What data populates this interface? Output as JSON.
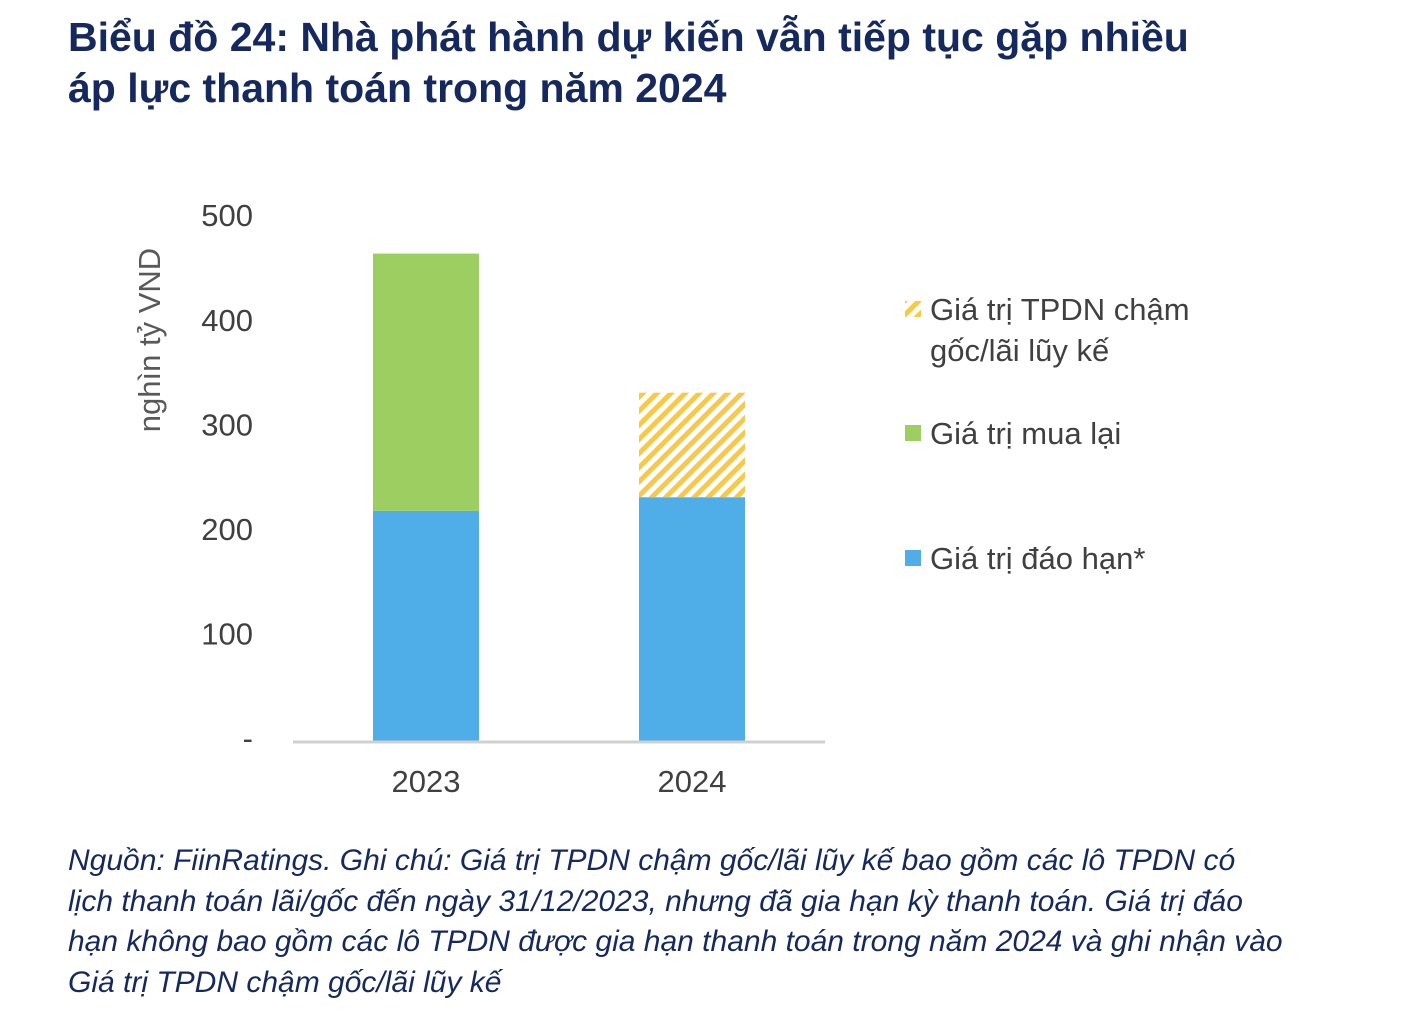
{
  "chart_data": {
    "type": "stacked_bar",
    "title": "Biểu đồ 24: Nhà phát hành dự kiến vẫn tiếp tục gặp nhiều áp lực thanh toán trong năm 2024",
    "y_label": "nghìn tỷ VND",
    "categories": [
      "2023",
      "2024"
    ],
    "series": [
      {
        "name": "Giá trị đáo hạn*",
        "color": "#4fade8",
        "values": [
          220,
          233
        ]
      },
      {
        "name": "Giá trị mua lại",
        "color": "#9dce62",
        "values": [
          246,
          0
        ]
      },
      {
        "name": "Giá trị TPDN chậm gốc/lãi lũy kế",
        "color": "#f7c948",
        "values": [
          0,
          100
        ],
        "hatch": true
      }
    ],
    "ylim": [
      0,
      500
    ],
    "yticks": [
      {
        "value": 0,
        "label": "-"
      },
      100,
      200,
      300,
      400,
      500
    ],
    "grid": false,
    "legend": "right",
    "note": "Nguồn: FiinRatings. Ghi chú: Giá trị TPDN chậm gốc/lãi lũy kế bao gồm các lô TPDN có lịch thanh toán lãi/gốc đến ngày 31/12/2023, nhưng đã gia hạn kỳ thanh toán. Giá trị đáo hạn không bao gồm các lô TPDN được gia hạn thanh toán trong năm 2024 và ghi nhận vào Giá trị TPDN chậm gốc/lãi lũy kế"
  }
}
